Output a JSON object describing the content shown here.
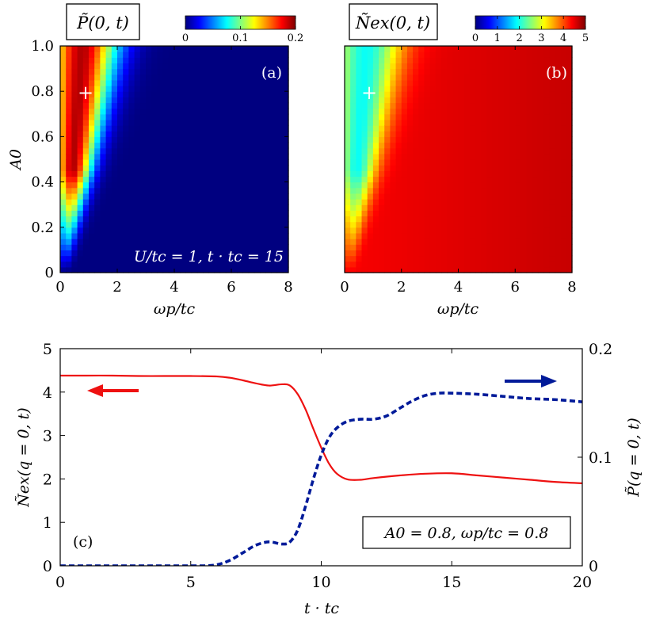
{
  "chart_data": [
    {
      "id": "a",
      "type": "heatmap",
      "panel_label": "(a)",
      "title": "P̃(0, t)",
      "xlabel": "ωp/tc",
      "ylabel": "A0",
      "xlim": [
        0,
        8
      ],
      "ylim": [
        0,
        1
      ],
      "x_ticks": [
        "0",
        "2",
        "4",
        "6",
        "8"
      ],
      "y_ticks": [
        "0",
        "0.2",
        "0.4",
        "0.6",
        "0.8",
        "1.0"
      ],
      "colorbar": {
        "min": 0,
        "max": 0.2,
        "ticks": [
          "0",
          "0.1",
          "0.2"
        ],
        "colormap": "jet"
      },
      "annotation": "U/tc = 1, t · tc = 15",
      "marker": {
        "x": 0.8,
        "y": 0.8,
        "symbol": "+"
      },
      "grid": {
        "nx": 40,
        "ny": 40
      },
      "model": "ridge: peak ~0.19 near ωp≈0.65, A0≈0.8; decays to ~0 for ωp>3"
    },
    {
      "id": "b",
      "type": "heatmap",
      "panel_label": "(b)",
      "title": "Ñex(0, t)",
      "xlabel": "ωp/tc",
      "ylabel": "",
      "xlim": [
        0,
        8
      ],
      "ylim": [
        0,
        1
      ],
      "x_ticks": [
        "0",
        "2",
        "4",
        "6",
        "8"
      ],
      "y_ticks": [],
      "colorbar": {
        "min": 0,
        "max": 5,
        "ticks": [
          "0",
          "1",
          "2",
          "3",
          "4",
          "5"
        ],
        "colormap": "jet"
      },
      "marker": {
        "x": 0.8,
        "y": 0.8,
        "symbol": "+"
      },
      "grid": {
        "nx": 40,
        "ny": 40
      },
      "model": "~4.4 background, ~2 near ωp<1 and A0>0.4, rising toward 4.6 at large ωp"
    },
    {
      "id": "c",
      "type": "line",
      "panel_label": "(c)",
      "xlabel": "t · tc",
      "ylabel_left": "Ñex(q = 0, t)",
      "ylabel_right": "P̃(q = 0, t)",
      "xlim": [
        0,
        20
      ],
      "ylim_left": [
        0,
        5
      ],
      "ylim_right": [
        0,
        0.2
      ],
      "x_ticks": [
        "0",
        "5",
        "10",
        "15",
        "20"
      ],
      "y_ticks_left": [
        "0",
        "1",
        "2",
        "3",
        "4",
        "5"
      ],
      "y_ticks_right": [
        "0",
        "0.1",
        "0.2"
      ],
      "annotation": "A0 = 0.8, ωp/tc = 0.8",
      "series": [
        {
          "name": "Ñex(q = 0, t)",
          "axis": "left",
          "color": "#ee1111",
          "style": "solid",
          "x": [
            0,
            1,
            2,
            3,
            4,
            5,
            6,
            6.5,
            7,
            7.5,
            8,
            8.5,
            8.8,
            9.1,
            9.4,
            9.7,
            10,
            10.3,
            10.6,
            11,
            11.5,
            12,
            13,
            14,
            15,
            16,
            17,
            18,
            19,
            20
          ],
          "values": [
            4.38,
            4.38,
            4.38,
            4.37,
            4.37,
            4.37,
            4.36,
            4.33,
            4.27,
            4.2,
            4.15,
            4.18,
            4.15,
            3.95,
            3.6,
            3.15,
            2.72,
            2.35,
            2.12,
            1.99,
            1.98,
            2.02,
            2.08,
            2.12,
            2.13,
            2.08,
            2.03,
            1.98,
            1.93,
            1.9
          ]
        },
        {
          "name": "P̃(q = 0, t)",
          "axis": "right",
          "color": "#001a99",
          "style": "dashed",
          "x": [
            0,
            1,
            2,
            3,
            4,
            5,
            5.5,
            6,
            6.5,
            7,
            7.5,
            8,
            8.5,
            8.8,
            9.1,
            9.4,
            9.7,
            10,
            10.3,
            10.6,
            11,
            11.5,
            12,
            12.5,
            13,
            13.5,
            14,
            14.5,
            15,
            16,
            17,
            18,
            19,
            20
          ],
          "values": [
            0.0,
            0.0,
            0.0,
            0.0,
            0.0,
            0.0,
            0.0,
            0.001,
            0.005,
            0.012,
            0.019,
            0.022,
            0.02,
            0.022,
            0.033,
            0.055,
            0.08,
            0.102,
            0.118,
            0.127,
            0.133,
            0.135,
            0.135,
            0.138,
            0.145,
            0.152,
            0.157,
            0.159,
            0.159,
            0.158,
            0.156,
            0.154,
            0.153,
            0.151
          ]
        }
      ],
      "arrows": [
        {
          "points_to": "left",
          "color": "#ee1111"
        },
        {
          "points_to": "right",
          "color": "#001a99"
        }
      ]
    }
  ]
}
